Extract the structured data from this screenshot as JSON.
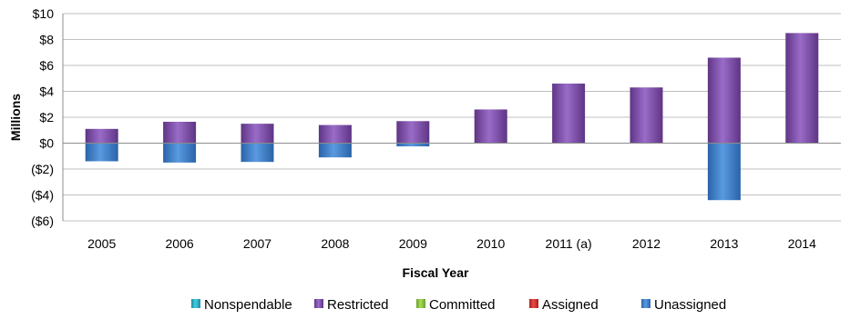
{
  "chart_data": {
    "type": "bar",
    "stacked": true,
    "title": "",
    "xlabel": "Fiscal Year",
    "ylabel": "Millions",
    "ylim": [
      -6,
      10
    ],
    "yticks": [
      10,
      8,
      6,
      4,
      2,
      0,
      -2,
      -4,
      -6
    ],
    "ytick_labels": [
      "$10",
      "$8",
      "$6",
      "$4",
      "$2",
      "$0",
      "($2)",
      "($4)",
      "($6)"
    ],
    "grid": true,
    "legend_position": "bottom",
    "categories": [
      "2005",
      "2006",
      "2007",
      "2008",
      "2009",
      "2010",
      "2011 (a)",
      "2012",
      "2013",
      "2014"
    ],
    "series": [
      {
        "name": "Nonspendable",
        "color": "#2bb3c8",
        "values": [
          0,
          0,
          0,
          0,
          0,
          0,
          0,
          0,
          0,
          0
        ]
      },
      {
        "name": "Restricted",
        "color": "#7d52a8",
        "values": [
          1.1,
          1.65,
          1.5,
          1.4,
          1.7,
          2.6,
          4.6,
          4.3,
          6.6,
          8.5
        ]
      },
      {
        "name": "Committed",
        "color": "#8ec63f",
        "values": [
          0,
          0,
          0,
          0,
          0,
          0,
          0,
          0,
          0,
          0
        ]
      },
      {
        "name": "Assigned",
        "color": "#d9322f",
        "values": [
          0,
          0,
          0,
          0,
          0,
          0,
          0,
          0,
          0,
          0
        ]
      },
      {
        "name": "Unassigned",
        "color": "#3f7fc9",
        "values": [
          -1.4,
          -1.5,
          -1.45,
          -1.1,
          -0.25,
          0,
          0,
          0,
          -4.4,
          0
        ]
      }
    ]
  }
}
